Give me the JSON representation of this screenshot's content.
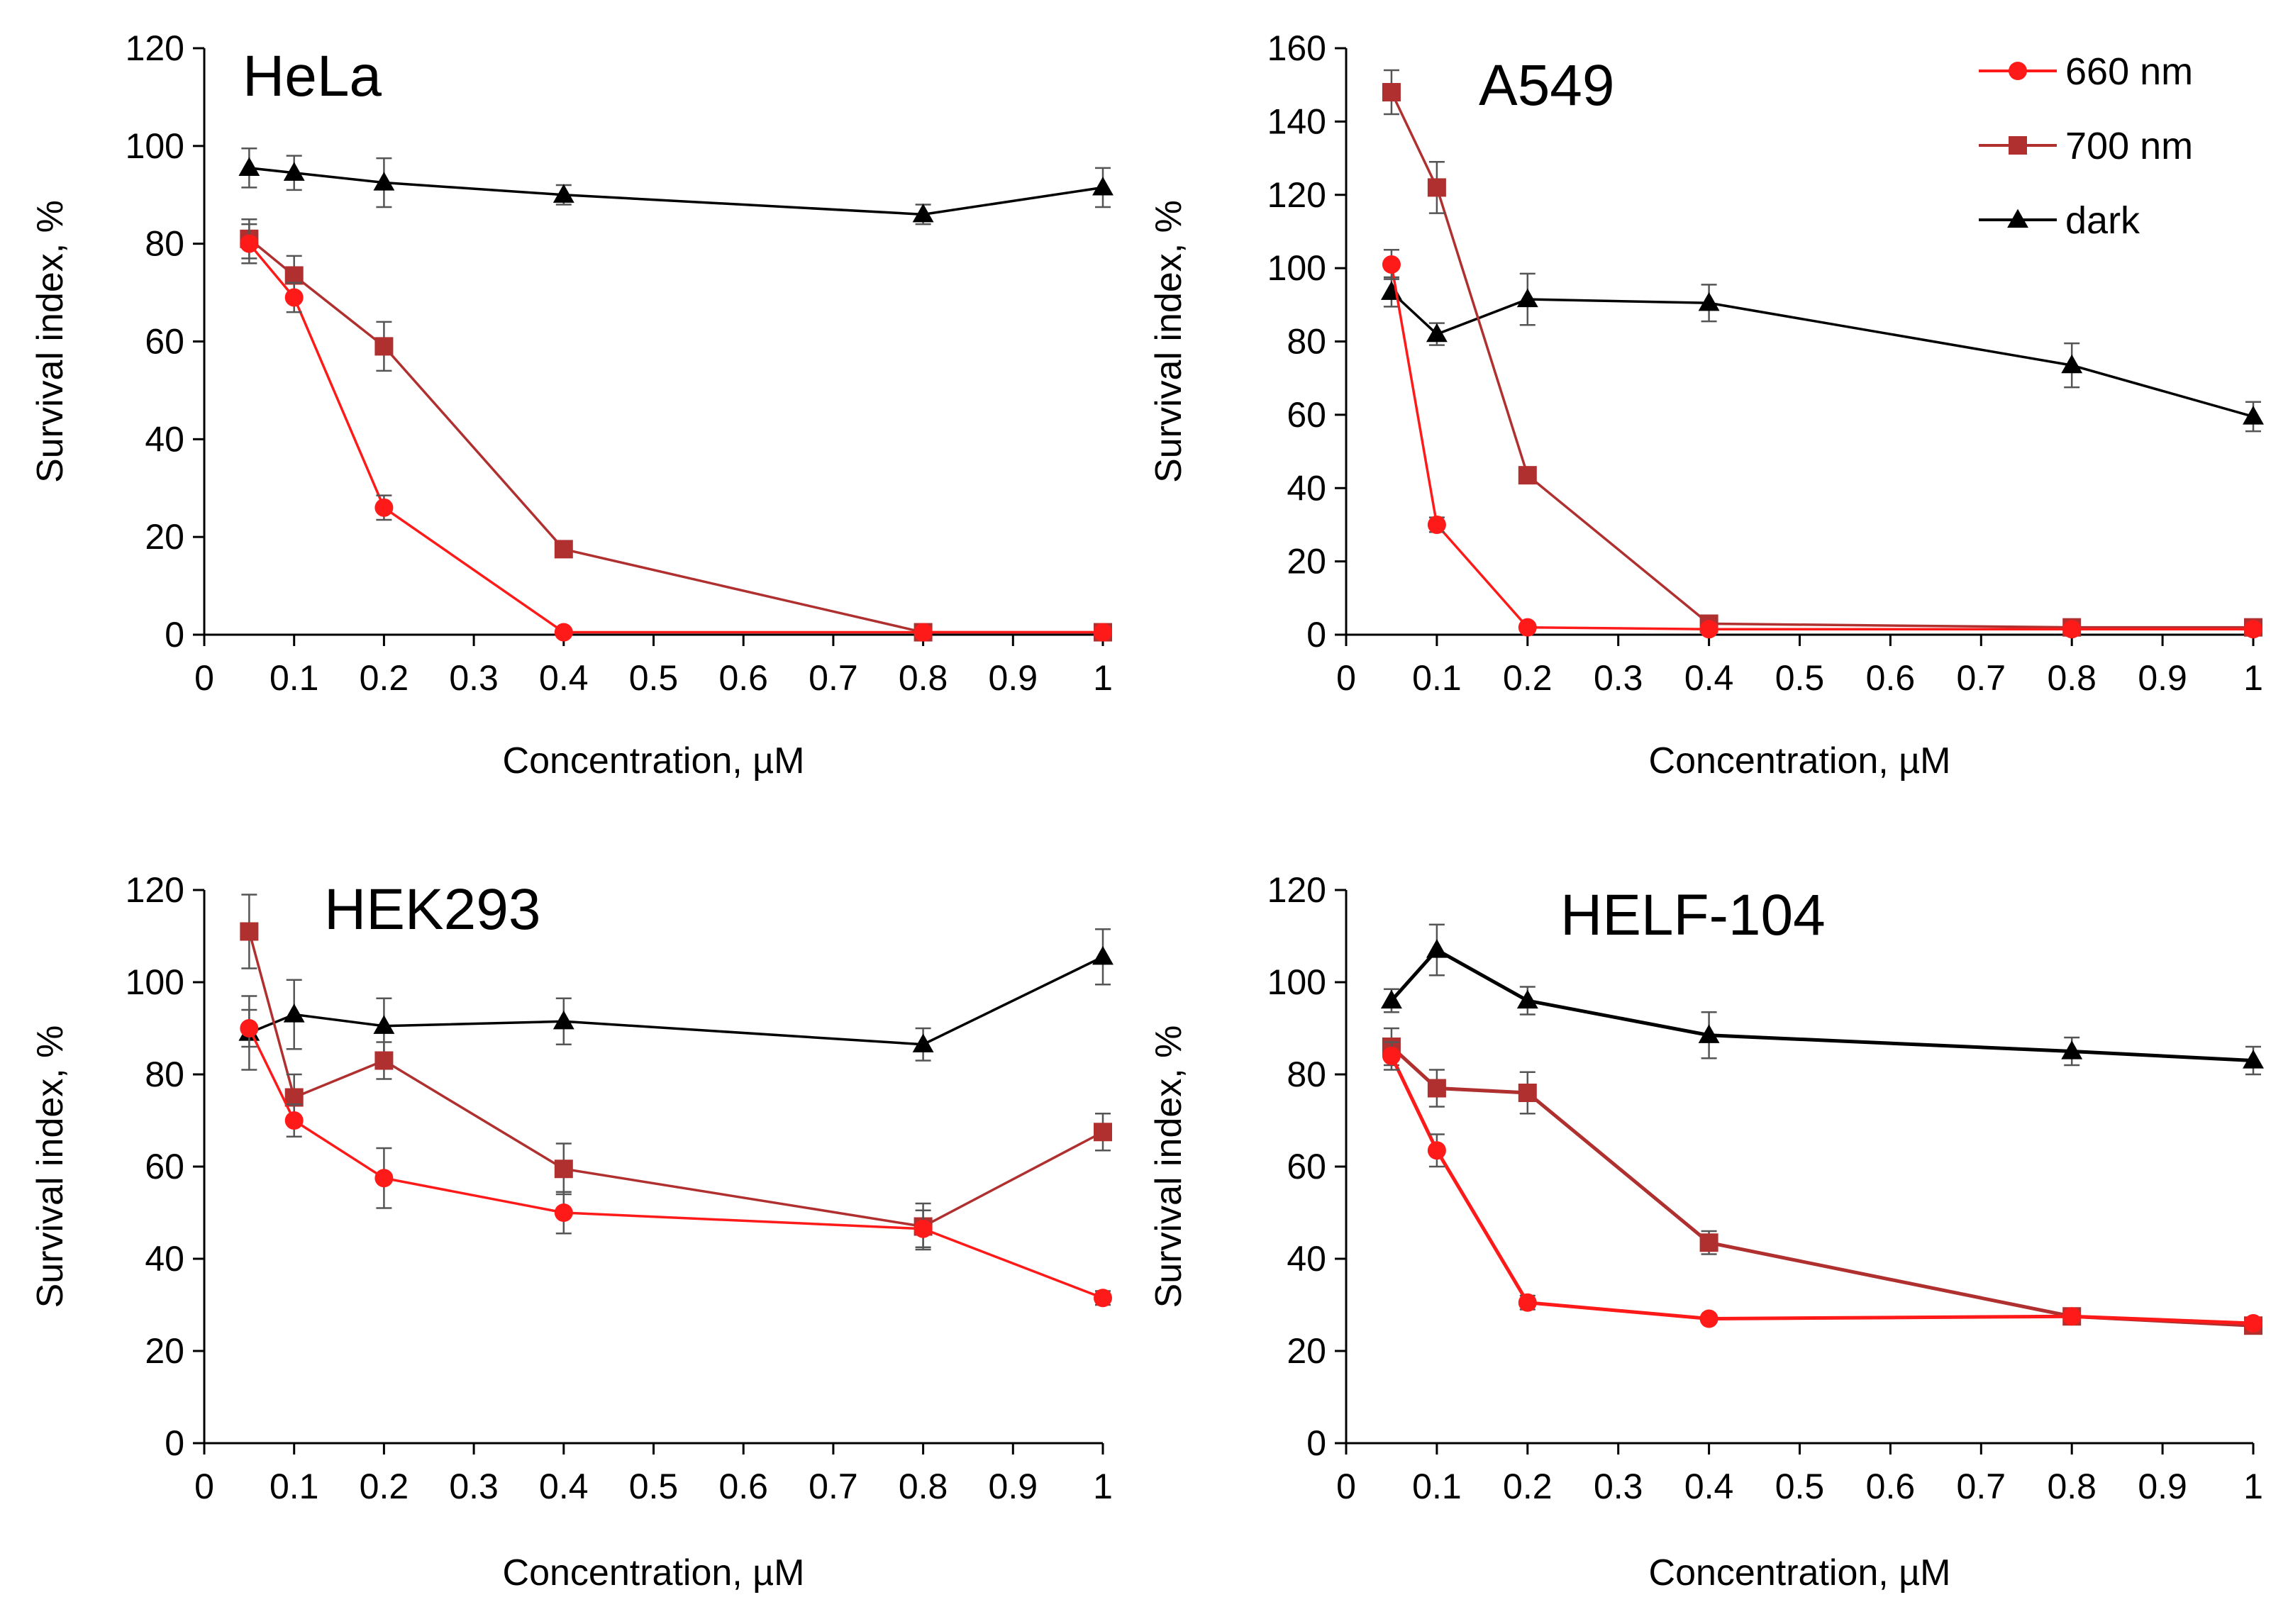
{
  "colors": {
    "nm660": "#ff1a1a",
    "nm700": "#b03030",
    "dark": "#000000",
    "axis": "#000000",
    "errorbar": "#555555"
  },
  "legend": [
    {
      "key": "nm660",
      "label": "660 nm",
      "marker": "circle"
    },
    {
      "key": "nm700",
      "label": "700 nm",
      "marker": "square"
    },
    {
      "key": "dark",
      "label": "dark",
      "marker": "triangle"
    }
  ],
  "chart_data": [
    {
      "type": "line",
      "title": "HeLa",
      "xlabel": "Concentration, µM",
      "ylabel": "Survival index, %",
      "xlim": [
        0,
        1
      ],
      "ylim": [
        0,
        120
      ],
      "xticks": [
        0,
        0.1,
        0.2,
        0.3,
        0.4,
        0.5,
        0.6,
        0.7,
        0.8,
        0.9,
        1
      ],
      "xtick_labels": [
        "0",
        "0.1",
        "0.2",
        "0.3",
        "0.4",
        "0.5",
        "0.6",
        "0.7",
        "0.8",
        "0.9",
        "1"
      ],
      "yticks": [
        0,
        20,
        40,
        60,
        80,
        100,
        120
      ],
      "ytick_labels": [
        "0",
        "20",
        "40",
        "60",
        "80",
        "100",
        "120"
      ],
      "x": [
        0.05,
        0.1,
        0.2,
        0.4,
        0.8,
        1
      ],
      "series": [
        {
          "key": "nm660",
          "name": "660 nm",
          "values": [
            80,
            69,
            26,
            0.5,
            0.5,
            0.5
          ],
          "errors": [
            4,
            3,
            2.5,
            0.5,
            0.5,
            0.5
          ]
        },
        {
          "key": "nm700",
          "name": "700 nm",
          "values": [
            81,
            73.5,
            59,
            17.5,
            0.5,
            0.5
          ],
          "errors": [
            4,
            4,
            5,
            1,
            0.5,
            0.5
          ]
        },
        {
          "key": "dark",
          "name": "dark",
          "values": [
            95.5,
            94.5,
            92.5,
            90,
            86,
            91.5
          ],
          "errors": [
            4,
            3.5,
            5,
            2,
            2,
            4
          ]
        }
      ]
    },
    {
      "type": "line",
      "title": "A549",
      "xlabel": "Concentration, µM",
      "ylabel": "Survival index, %",
      "xlim": [
        0,
        1
      ],
      "ylim": [
        0,
        160
      ],
      "xticks": [
        0,
        0.1,
        0.2,
        0.3,
        0.4,
        0.5,
        0.6,
        0.7,
        0.8,
        0.9,
        1
      ],
      "xtick_labels": [
        "0",
        "0.1",
        "0.2",
        "0.3",
        "0.4",
        "0.5",
        "0.6",
        "0.7",
        "0.8",
        "0.9",
        "1"
      ],
      "yticks": [
        0,
        20,
        40,
        60,
        80,
        100,
        120,
        140,
        160
      ],
      "ytick_labels": [
        "0",
        "20",
        "40",
        "60",
        "80",
        "100",
        "120",
        "140",
        "160"
      ],
      "x": [
        0.05,
        0.1,
        0.2,
        0.4,
        0.8,
        1
      ],
      "series": [
        {
          "key": "nm660",
          "name": "660 nm",
          "values": [
            101,
            30,
            2,
            1.5,
            1.5,
            1.5
          ],
          "errors": [
            4,
            2,
            1,
            0.5,
            0.5,
            0.5
          ]
        },
        {
          "key": "nm700",
          "name": "700 nm",
          "values": [
            148,
            122,
            43.5,
            3,
            2,
            2
          ],
          "errors": [
            6,
            7,
            2,
            1.5,
            1,
            1
          ]
        },
        {
          "key": "dark",
          "name": "dark",
          "values": [
            93.5,
            82,
            91.5,
            90.5,
            73.5,
            59.5
          ],
          "errors": [
            4,
            3,
            7,
            5,
            6,
            4
          ]
        }
      ]
    },
    {
      "type": "line",
      "title": "HEK293",
      "xlabel": "Concentration, µM",
      "ylabel": "Survival index, %",
      "xlim": [
        0,
        1
      ],
      "ylim": [
        0,
        120
      ],
      "xticks": [
        0,
        0.1,
        0.2,
        0.3,
        0.4,
        0.5,
        0.6,
        0.7,
        0.8,
        0.9,
        1
      ],
      "xtick_labels": [
        "0",
        "0.1",
        "0.2",
        "0.3",
        "0.4",
        "0.5",
        "0.6",
        "0.7",
        "0.8",
        "0.9",
        "1"
      ],
      "yticks": [
        0,
        20,
        40,
        60,
        80,
        100,
        120
      ],
      "ytick_labels": [
        "0",
        "20",
        "40",
        "60",
        "80",
        "100",
        "120"
      ],
      "x": [
        0.05,
        0.1,
        0.2,
        0.4,
        0.8,
        1
      ],
      "series": [
        {
          "key": "nm660",
          "name": "660 nm",
          "values": [
            90,
            70,
            57.5,
            50,
            46.5,
            31.5
          ],
          "errors": [
            4,
            3.5,
            6.5,
            4.5,
            4,
            1.5
          ]
        },
        {
          "key": "nm700",
          "name": "700 nm",
          "values": [
            111,
            75,
            83,
            59.5,
            47,
            67.5
          ],
          "errors": [
            8,
            5,
            4,
            5.5,
            5,
            4
          ]
        },
        {
          "key": "dark",
          "name": "dark",
          "values": [
            89,
            93,
            90.5,
            91.5,
            86.5,
            105.5
          ],
          "errors": [
            8,
            7.5,
            6,
            5,
            3.5,
            6
          ]
        }
      ]
    },
    {
      "type": "line",
      "title": "HELF-104",
      "xlabel": "Concentration, µM",
      "ylabel": "Survival index, %",
      "xlim": [
        0,
        1
      ],
      "ylim": [
        0,
        120
      ],
      "xticks": [
        0,
        0.1,
        0.2,
        0.3,
        0.4,
        0.5,
        0.6,
        0.7,
        0.8,
        0.9,
        1
      ],
      "xtick_labels": [
        "0",
        "0.1",
        "0.2",
        "0.3",
        "0.4",
        "0.5",
        "0.6",
        "0.7",
        "0.8",
        "0.9",
        "1"
      ],
      "yticks": [
        0,
        20,
        40,
        60,
        80,
        100,
        120
      ],
      "ytick_labels": [
        "0",
        "20",
        "40",
        "60",
        "80",
        "100",
        "120"
      ],
      "x": [
        0.05,
        0.1,
        0.2,
        0.4,
        0.8,
        1
      ],
      "series": [
        {
          "key": "nm660",
          "name": "660 nm",
          "values": [
            84,
            63.5,
            30.5,
            27,
            27.5,
            26
          ],
          "errors": [
            3,
            3.5,
            1.5,
            0.5,
            0.5,
            0.5
          ]
        },
        {
          "key": "nm700",
          "name": "700 nm",
          "values": [
            86,
            77,
            76,
            43.5,
            27.5,
            25.5
          ],
          "errors": [
            4,
            4,
            4.5,
            2.5,
            1,
            1
          ]
        },
        {
          "key": "dark",
          "name": "dark",
          "values": [
            96,
            107,
            96,
            88.5,
            85,
            83
          ],
          "errors": [
            2.5,
            5.5,
            3,
            5,
            3,
            3
          ]
        }
      ]
    }
  ]
}
